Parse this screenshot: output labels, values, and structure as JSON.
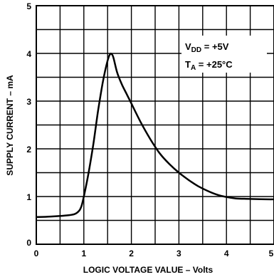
{
  "chart_data": {
    "type": "line",
    "title": "",
    "xlabel": "LOGIC VOLTAGE VALUE – Volts",
    "ylabel": "SUPPLY CURRENT – mA",
    "xlim": [
      0,
      5
    ],
    "ylim": [
      0,
      5
    ],
    "xticks": [
      "0",
      "1",
      "2",
      "3",
      "4",
      "5"
    ],
    "yticks": [
      "0",
      "1",
      "2",
      "3",
      "4",
      "5"
    ],
    "grid": true,
    "conditions": {
      "vdd_main": "V",
      "vdd_sub": "DD",
      "vdd_value": " = +5V",
      "ta_main": "T",
      "ta_sub": "A",
      "ta_value": " = +25°C"
    },
    "series": [
      {
        "name": "",
        "x": [
          0,
          0.3,
          0.6,
          0.8,
          0.9,
          0.95,
          1.0,
          1.1,
          1.2,
          1.3,
          1.4,
          1.5,
          1.55,
          1.58,
          1.62,
          1.7,
          1.8,
          1.9,
          2.0,
          2.2,
          2.4,
          2.6,
          2.8,
          3.0,
          3.2,
          3.4,
          3.6,
          3.8,
          4.0,
          4.2,
          4.5,
          5.0
        ],
        "y": [
          0.57,
          0.58,
          0.6,
          0.63,
          0.7,
          0.8,
          1.0,
          1.5,
          2.1,
          2.8,
          3.4,
          3.85,
          3.98,
          3.99,
          3.92,
          3.6,
          3.35,
          3.15,
          2.95,
          2.55,
          2.2,
          1.9,
          1.68,
          1.5,
          1.35,
          1.22,
          1.12,
          1.04,
          0.99,
          0.96,
          0.95,
          0.94
        ]
      }
    ]
  }
}
